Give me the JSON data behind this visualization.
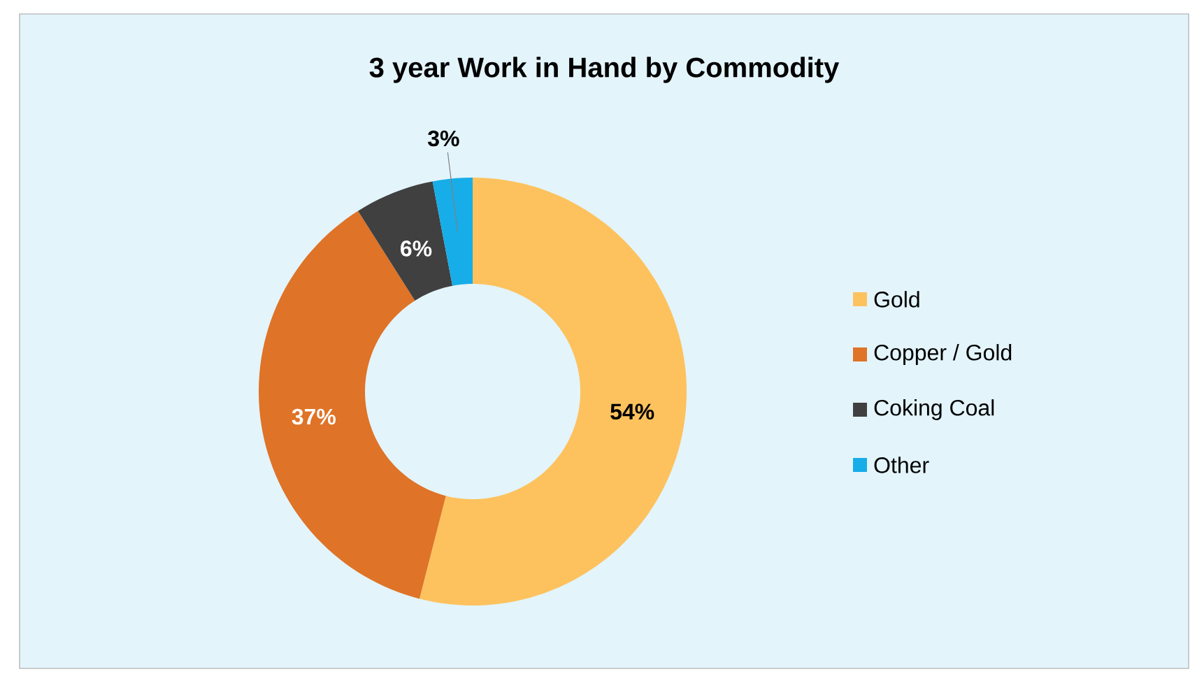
{
  "chart_data": {
    "type": "donut",
    "title": "3 year Work in Hand by Commodity",
    "categories": [
      "Gold",
      "Copper / Gold",
      "Coking Coal",
      "Other"
    ],
    "values": [
      54,
      37,
      6,
      3
    ],
    "colors": [
      "#fdc25d",
      "#df7327",
      "#404040",
      "#16ade8"
    ],
    "value_labels": [
      "54%",
      "37%",
      "6%",
      "3%"
    ],
    "legend": "right"
  }
}
